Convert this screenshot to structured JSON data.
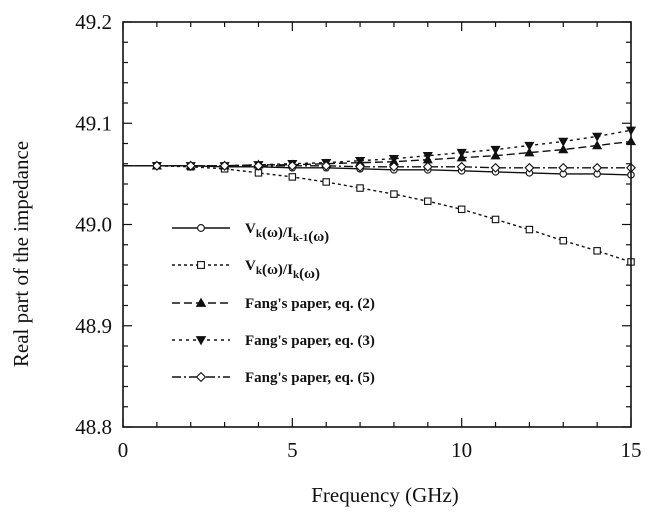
{
  "chart_data": {
    "type": "line",
    "xlabel": "Frequency (GHz)",
    "ylabel": "Real part of the impedance",
    "xlim": [
      0,
      15
    ],
    "ylim": [
      48.8,
      49.2
    ],
    "xticks": [
      "0",
      "5",
      "10",
      "15"
    ],
    "yticks": [
      "48.8",
      "48.9",
      "49.0",
      "49.1",
      "49.2"
    ],
    "grid": false,
    "legend_position": "left-center",
    "x": [
      0,
      1,
      2,
      3,
      4,
      5,
      6,
      7,
      8,
      9,
      10,
      11,
      12,
      13,
      14,
      15
    ],
    "series": [
      {
        "name": "Vk(ω)/Ik-1(ω)",
        "legend_parts": [
          {
            "t": "V",
            "s": "base"
          },
          {
            "t": "k",
            "s": "sub"
          },
          {
            "t": "(ω)/I",
            "s": "base"
          },
          {
            "t": "k-1",
            "s": "sub"
          },
          {
            "t": "(ω)",
            "s": "base"
          }
        ],
        "marker": "circle",
        "dash": "none",
        "values": [
          49.058,
          49.058,
          49.058,
          49.057,
          49.057,
          49.056,
          49.056,
          49.055,
          49.054,
          49.054,
          49.053,
          49.052,
          49.051,
          49.05,
          49.05,
          49.049
        ]
      },
      {
        "name": "Vk(ω)/Ik(ω)",
        "legend_parts": [
          {
            "t": "V",
            "s": "base"
          },
          {
            "t": "k",
            "s": "sub"
          },
          {
            "t": "(ω)/I",
            "s": "base"
          },
          {
            "t": "k",
            "s": "sub"
          },
          {
            "t": "(ω)",
            "s": "base"
          }
        ],
        "marker": "square",
        "dash": "3,3",
        "values": [
          49.058,
          49.058,
          49.057,
          49.055,
          49.051,
          49.047,
          49.042,
          49.036,
          49.03,
          49.023,
          49.015,
          49.005,
          48.995,
          48.984,
          48.974,
          48.963
        ]
      },
      {
        "name": "Fang's paper, eq. (2)",
        "marker": "triangle-up",
        "dash": "8,4",
        "values": [
          49.058,
          49.058,
          49.058,
          49.058,
          49.059,
          49.059,
          49.06,
          49.061,
          49.062,
          49.064,
          49.066,
          49.068,
          49.071,
          49.074,
          49.078,
          49.082
        ]
      },
      {
        "name": "Fang's paper, eq. (3)",
        "marker": "triangle-down",
        "dash": "3,4",
        "values": [
          49.058,
          49.058,
          49.058,
          49.058,
          49.059,
          49.06,
          49.061,
          49.063,
          49.065,
          49.068,
          49.071,
          49.074,
          49.078,
          49.082,
          49.087,
          49.093
        ]
      },
      {
        "name": "Fang's paper, eq. (5)",
        "marker": "diamond",
        "dash": "9,3,2,3",
        "values": [
          49.058,
          49.058,
          49.058,
          49.058,
          49.058,
          49.058,
          49.058,
          49.057,
          49.057,
          49.057,
          49.057,
          49.056,
          49.056,
          49.056,
          49.056,
          49.056
        ]
      }
    ]
  }
}
